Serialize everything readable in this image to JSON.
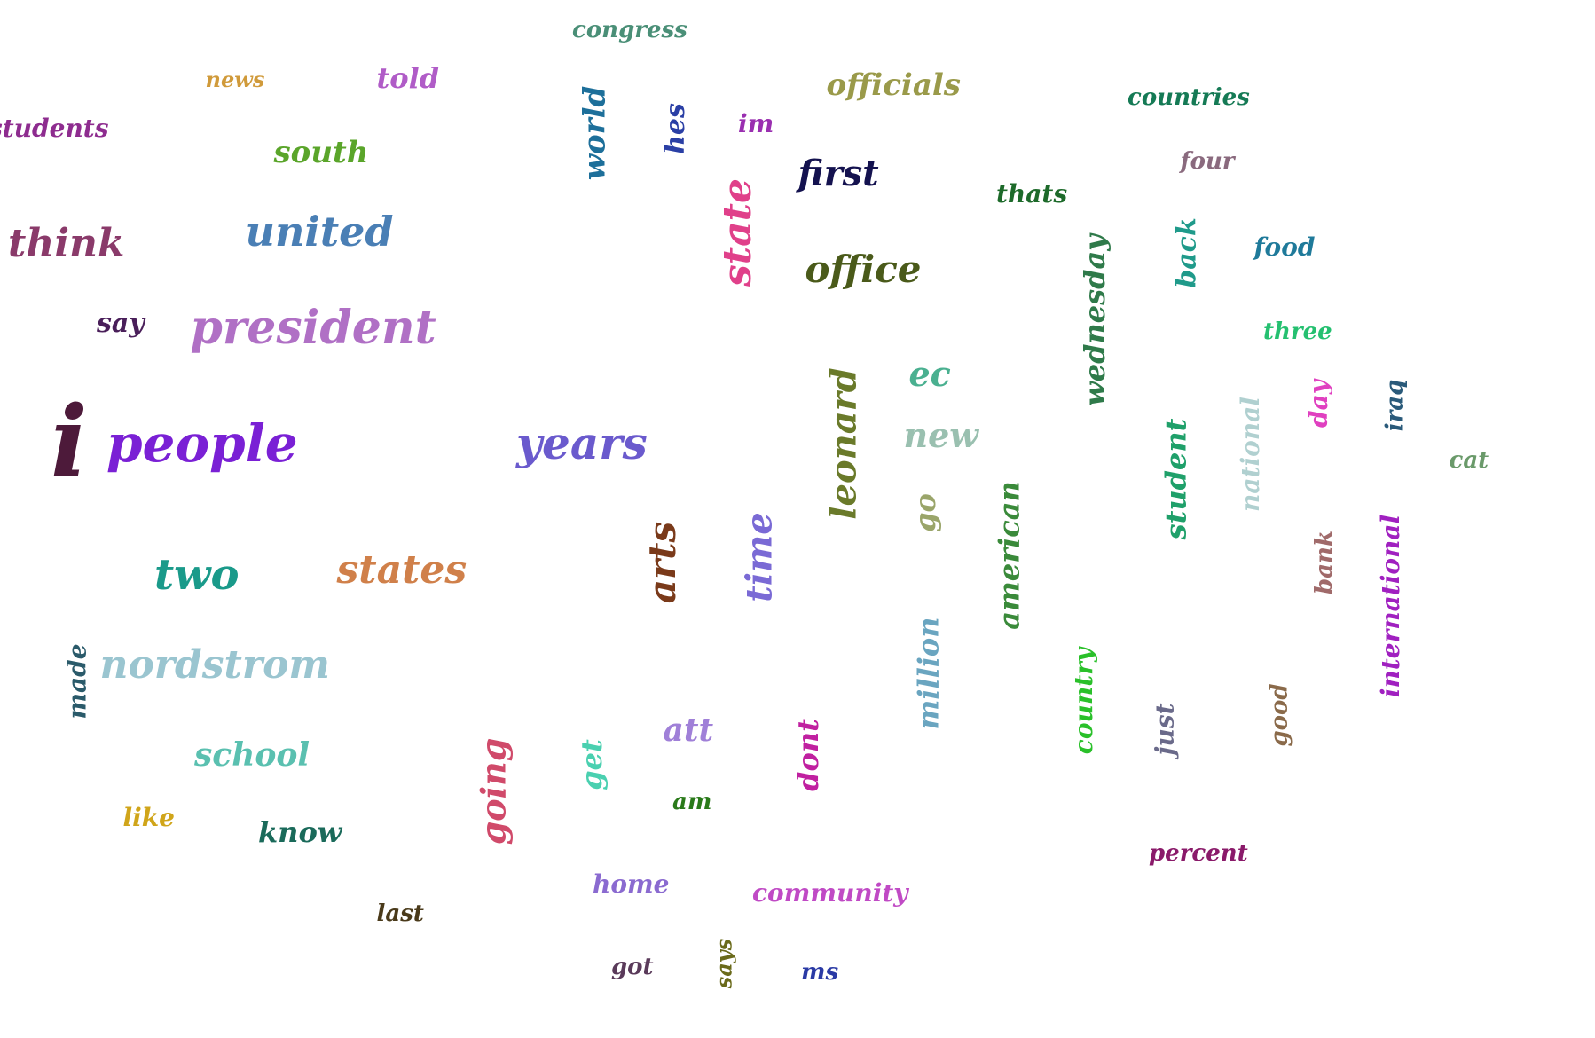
{
  "words": [
    {
      "text": "congress",
      "color": "#4a8f77"
    },
    {
      "text": "news",
      "color": "#d09a3a"
    },
    {
      "text": "told",
      "color": "#b05cc7"
    },
    {
      "text": "students",
      "color": "#8e2c8f"
    },
    {
      "text": "south",
      "color": "#5aa52a"
    },
    {
      "text": "world",
      "color": "#1d6f9a"
    },
    {
      "text": "hes",
      "color": "#2a3fa5"
    },
    {
      "text": "im",
      "color": "#9a2fb0"
    },
    {
      "text": "officials",
      "color": "#9a9a4a"
    },
    {
      "text": "countries",
      "color": "#157a55"
    },
    {
      "text": "four",
      "color": "#8a6a7e"
    },
    {
      "text": "first",
      "color": "#14124f"
    },
    {
      "text": "thats",
      "color": "#1d6a2a"
    },
    {
      "text": "think",
      "color": "#8a3a6a"
    },
    {
      "text": "united",
      "color": "#4a7fb5"
    },
    {
      "text": "state",
      "color": "#e0408a"
    },
    {
      "text": "office",
      "color": "#4a5a1a"
    },
    {
      "text": "back",
      "color": "#1f9a8a"
    },
    {
      "text": "food",
      "color": "#1f7a9a"
    },
    {
      "text": "wednesday",
      "color": "#2f7a4a"
    },
    {
      "text": "say",
      "color": "#4a1f5a"
    },
    {
      "text": "president",
      "color": "#b070c5"
    },
    {
      "text": "three",
      "color": "#25c070"
    },
    {
      "text": "ec",
      "color": "#4ab090"
    },
    {
      "text": "i",
      "color": "#4d1a3a"
    },
    {
      "text": "people",
      "color": "#7a20d5"
    },
    {
      "text": "years",
      "color": "#6a5acd"
    },
    {
      "text": "leonard",
      "color": "#6a7a2a"
    },
    {
      "text": "new",
      "color": "#9ac0b0"
    },
    {
      "text": "national",
      "color": "#b0d0d0"
    },
    {
      "text": "day",
      "color": "#e040c0"
    },
    {
      "text": "iraq",
      "color": "#2a5a7a"
    },
    {
      "text": "student",
      "color": "#1fa06a"
    },
    {
      "text": "cat",
      "color": "#6a9a6a"
    },
    {
      "text": "go",
      "color": "#9aa56a"
    },
    {
      "text": "two",
      "color": "#1a9a8a"
    },
    {
      "text": "states",
      "color": "#d0804a"
    },
    {
      "text": "arts",
      "color": "#7a3a1a"
    },
    {
      "text": "time",
      "color": "#7a6ad5"
    },
    {
      "text": "american",
      "color": "#3a8a3a"
    },
    {
      "text": "bank",
      "color": "#a06a6a"
    },
    {
      "text": "international",
      "color": "#a020c0"
    },
    {
      "text": "made",
      "color": "#2a5a6a"
    },
    {
      "text": "nordstrom",
      "color": "#9ac5d0"
    },
    {
      "text": "million",
      "color": "#6aa5c0"
    },
    {
      "text": "country",
      "color": "#2ac02a"
    },
    {
      "text": "just",
      "color": "#6a6a8a"
    },
    {
      "text": "good",
      "color": "#8a6a4a"
    },
    {
      "text": "school",
      "color": "#5ac0b0"
    },
    {
      "text": "att",
      "color": "#a080d8"
    },
    {
      "text": "going",
      "color": "#d04a6a"
    },
    {
      "text": "get",
      "color": "#4ad0b0"
    },
    {
      "text": "dont",
      "color": "#c020a0"
    },
    {
      "text": "am",
      "color": "#2a7a1a"
    },
    {
      "text": "like",
      "color": "#d0a51a"
    },
    {
      "text": "know",
      "color": "#1a6a5a"
    },
    {
      "text": "percent",
      "color": "#8a1a6a"
    },
    {
      "text": "home",
      "color": "#8a6ad0"
    },
    {
      "text": "community",
      "color": "#c04ac5"
    },
    {
      "text": "last",
      "color": "#4a3a1a"
    },
    {
      "text": "got",
      "color": "#5a3a5a"
    },
    {
      "text": "says",
      "color": "#6a6a1a"
    },
    {
      "text": "ms",
      "color": "#2a3aa5"
    }
  ]
}
